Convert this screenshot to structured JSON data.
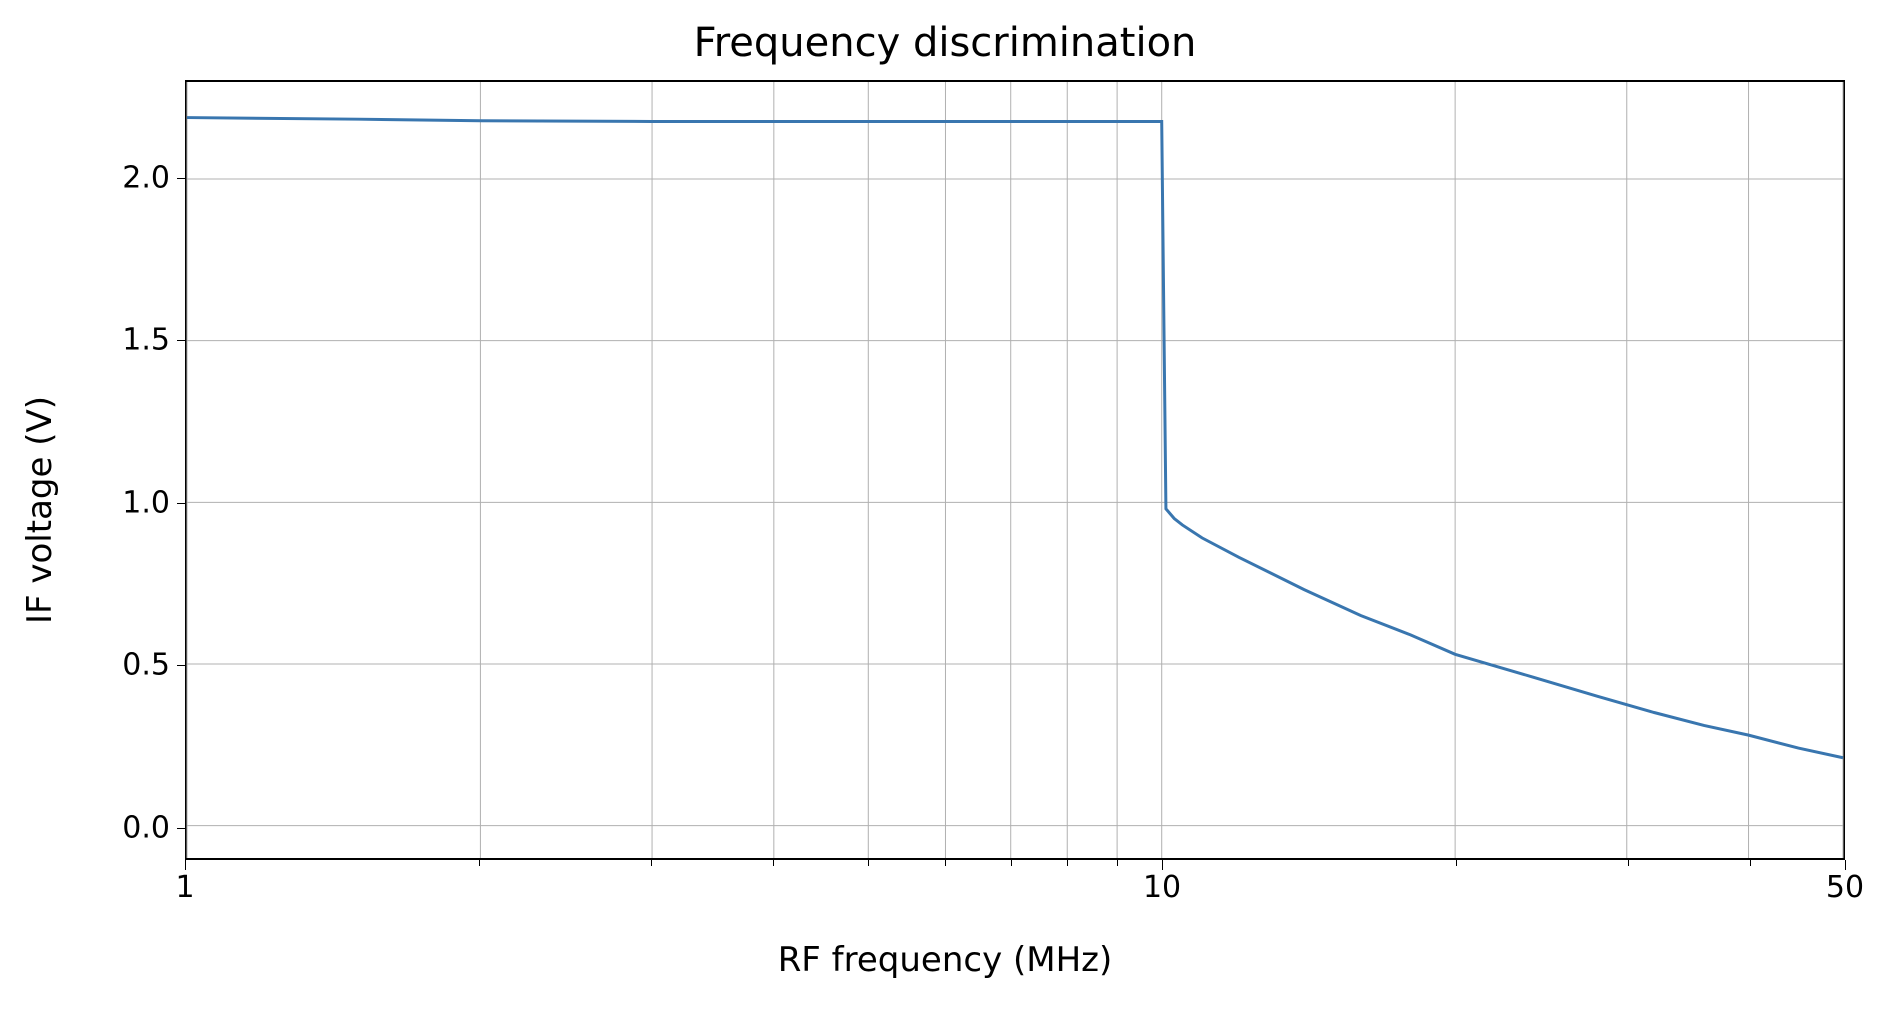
{
  "chart": {
    "type": "line",
    "title": "Frequency discrimination",
    "title_fontsize": 40,
    "xlabel": "RF frequency (MHz)",
    "ylabel": "IF voltage (V)",
    "label_fontsize": 34,
    "tick_fontsize": 30,
    "background_color": "#ffffff",
    "grid_color": "#b0b0b0",
    "border_color": "#000000",
    "line_color": "#3976af",
    "line_width": 3,
    "xscale": "log",
    "xlim": [
      1,
      50
    ],
    "ylim": [
      -0.1,
      2.3
    ],
    "x_major_ticks": [
      1,
      10,
      50
    ],
    "x_major_tick_labels": [
      "1",
      "10",
      "50"
    ],
    "x_minor_ticks": [
      2,
      3,
      4,
      5,
      6,
      7,
      8,
      9,
      20,
      30,
      40
    ],
    "y_ticks": [
      0.0,
      0.5,
      1.0,
      1.5,
      2.0
    ],
    "y_tick_labels": [
      "0.0",
      "0.5",
      "1.0",
      "1.5",
      "2.0"
    ],
    "data": {
      "x": [
        1,
        1.5,
        2,
        3,
        4,
        5,
        6,
        7,
        8,
        9,
        9.5,
        9.9,
        10,
        10.1,
        10.3,
        10.5,
        11,
        12,
        14,
        16,
        18,
        20,
        24,
        28,
        32,
        36,
        40,
        45,
        50
      ],
      "y": [
        2.19,
        2.185,
        2.18,
        2.178,
        2.178,
        2.178,
        2.178,
        2.178,
        2.178,
        2.178,
        2.178,
        2.178,
        2.178,
        0.98,
        0.95,
        0.93,
        0.89,
        0.83,
        0.73,
        0.65,
        0.59,
        0.53,
        0.46,
        0.4,
        0.35,
        0.31,
        0.28,
        0.24,
        0.21
      ]
    }
  }
}
